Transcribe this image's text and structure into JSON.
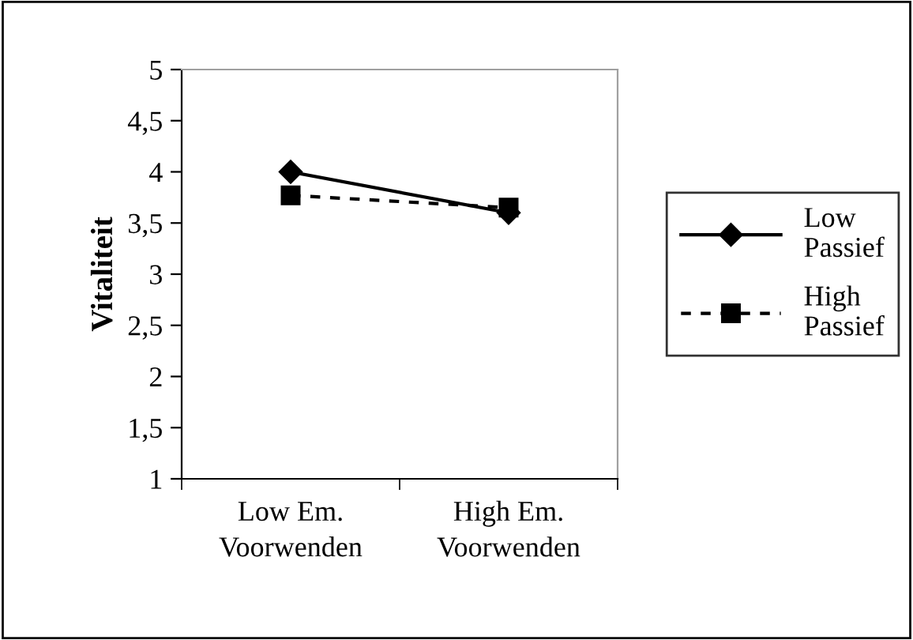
{
  "chart_data": {
    "type": "line",
    "ylabel": "Vitaliteit",
    "categories": [
      "Low Em.\nVoorwenden",
      "High Em.\nVoorwenden"
    ],
    "series": [
      {
        "name": "Low Passief",
        "color": "#000000",
        "values": [
          4.0,
          3.6
        ],
        "marker": "diamond",
        "line_style": "solid"
      },
      {
        "name": "High Passief",
        "color": "#000000",
        "values": [
          3.77,
          3.65
        ],
        "marker": "square",
        "line_style": "dashed"
      }
    ],
    "ylim": [
      1,
      5
    ],
    "yticks": [
      1,
      {
        "value": 1.5,
        "label": "1,5"
      },
      2,
      {
        "value": 2.5,
        "label": "2,5"
      },
      3,
      {
        "value": 3.5,
        "label": "3,5"
      },
      4,
      {
        "value": 4.5,
        "label": "4,5"
      },
      5
    ],
    "grid": false,
    "legend": "right"
  }
}
